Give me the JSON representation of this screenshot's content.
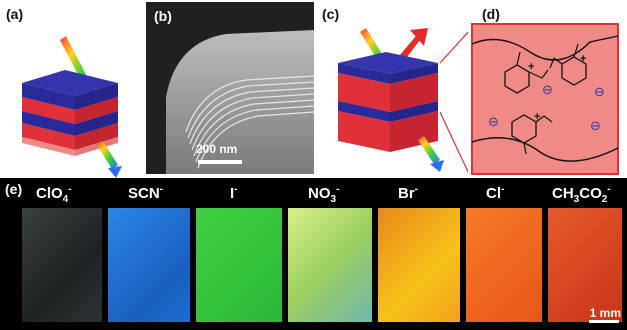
{
  "panels": {
    "a": "(a)",
    "b": "(b)",
    "c": "(c)",
    "d": "(d)",
    "e": "(e)"
  },
  "sem": {
    "scale_label": "200 nm"
  },
  "ions": [
    {
      "base": "ClO",
      "sub": "4",
      "sup": "-"
    },
    {
      "base": "SCN",
      "sub": "",
      "sup": "-"
    },
    {
      "base": "I",
      "sub": "",
      "sup": "-"
    },
    {
      "base": "NO",
      "sub": "3",
      "sup": "-"
    },
    {
      "base": "Br",
      "sub": "",
      "sup": "-"
    },
    {
      "base": "Cl",
      "sub": "",
      "sup": "-"
    },
    {
      "base": "CH",
      "sub": "3",
      "mid": "CO",
      "sub2": "2",
      "sup": "-"
    }
  ],
  "colors": {
    "swatches": [
      "#2a2f2f",
      "#1a6fd0",
      "#2fc23a",
      "#a8cf6a",
      "#f0a21a",
      "#ee6a1a",
      "#d8451e"
    ],
    "block_red": "#e0303a",
    "block_blue": "#2a2a9a",
    "inset_bg": "#f08a86"
  },
  "scale_bar": {
    "label": "1 mm"
  },
  "diagram": {
    "charge_symbol": "+",
    "anion_symbol": "⊖"
  }
}
